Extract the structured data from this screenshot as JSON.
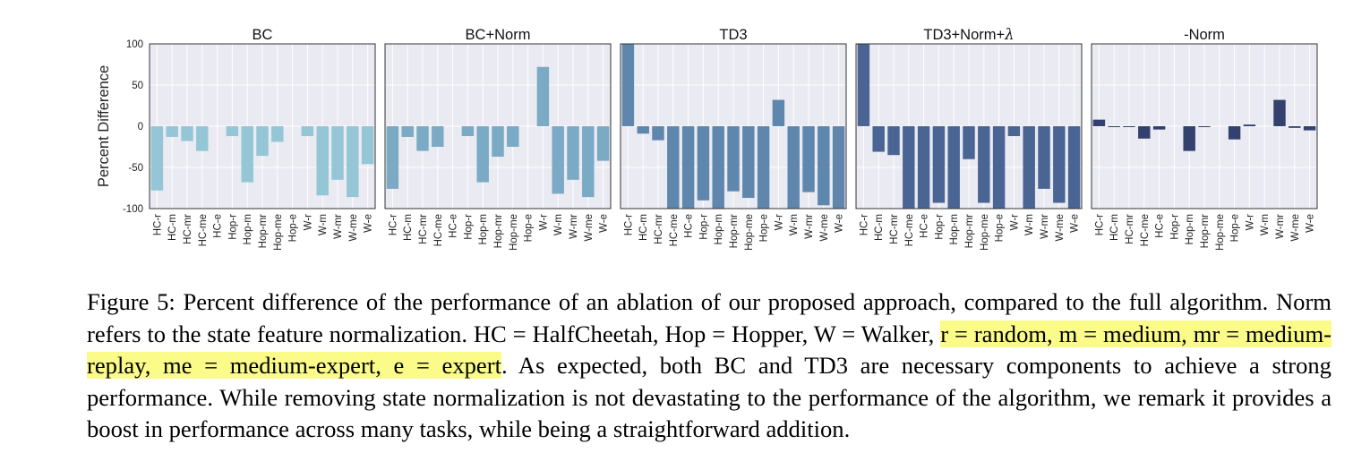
{
  "chart_data": {
    "type": "bar",
    "ylabel": "Percent Difference",
    "ylim": [
      -100,
      100
    ],
    "yticks": [
      100,
      50,
      0,
      -50,
      -100
    ],
    "categories": [
      "HC-r",
      "HC-m",
      "HC-mr",
      "HC-me",
      "HC-e",
      "Hop-r",
      "Hop-m",
      "Hop-mr",
      "Hop-me",
      "Hop-e",
      "W-r",
      "W-m",
      "W-mr",
      "W-me",
      "W-e"
    ],
    "grid": true,
    "panels": [
      {
        "title": "BC",
        "title_suffix": "",
        "color": "#94c6d6",
        "values": [
          -78,
          -13,
          -18,
          -30,
          0,
          -12,
          -68,
          -36,
          -19,
          0,
          -12,
          -84,
          -65,
          -86,
          -46
        ]
      },
      {
        "title": "BC+Norm",
        "title_suffix": "",
        "color": "#7aaac4",
        "values": [
          -76,
          -13,
          -30,
          -25,
          0,
          -12,
          -68,
          -37,
          -25,
          0,
          72,
          -82,
          -65,
          -86,
          -42
        ]
      },
      {
        "title": "TD3",
        "title_suffix": "",
        "color": "#5f87ad",
        "values": [
          100,
          -9,
          -17,
          -100,
          -100,
          -90,
          -100,
          -79,
          -87,
          -100,
          32,
          -100,
          -80,
          -96,
          -100
        ]
      },
      {
        "title": "TD3+Norm+",
        "title_suffix": "λ",
        "color": "#4a6594",
        "values": [
          100,
          -31,
          -35,
          -100,
          -100,
          -93,
          -100,
          -40,
          -93,
          -100,
          -12,
          -100,
          -76,
          -93,
          -100
        ]
      },
      {
        "title": "-Norm",
        "title_suffix": "",
        "color": "#33416e",
        "values": [
          8,
          -1,
          -1,
          -15,
          -4,
          0,
          -30,
          -1,
          0,
          -16,
          2,
          0,
          32,
          -2,
          -5
        ]
      }
    ]
  },
  "caption": {
    "p1": "Figure 5: Percent difference of the performance of an ablation of our proposed approach, compared to the full algorithm. Norm refers to the state feature normalization. HC = HalfCheetah, Hop = Hopper, W = Walker, ",
    "highlight": "r = random, m = medium, mr = medium-replay, me = medium-expert, e = expert",
    "p2": ". As expected, both BC and TD3 are necessary components to achieve a strong performance. While removing state normalization is not devastating to the performance of the algorithm, we remark it provides a boost in performance across many tasks, while being a straightforward addition."
  }
}
